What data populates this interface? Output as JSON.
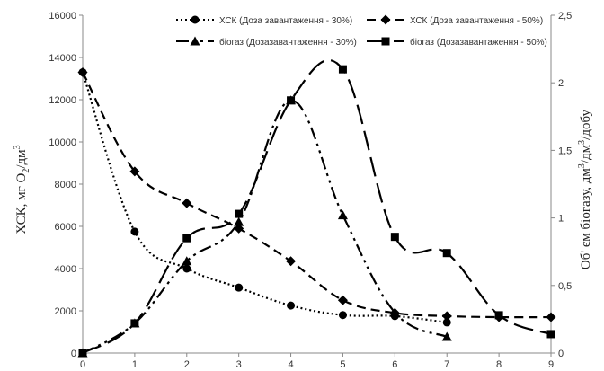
{
  "chart_data": {
    "type": "line",
    "x": [
      0,
      1,
      2,
      3,
      4,
      5,
      6,
      7,
      8,
      9
    ],
    "xlim": [
      0,
      9
    ],
    "y_left": {
      "label": "ХСК, мг О₂/дм³",
      "ylim": [
        0,
        16000
      ],
      "ticks": [
        0,
        2000,
        4000,
        6000,
        8000,
        10000,
        12000,
        14000,
        16000
      ]
    },
    "y_right": {
      "label": "Об' єм біогазу, дм³/дм³/добу",
      "ylim": [
        0,
        2.5
      ],
      "ticks": [
        "0",
        "0,5",
        "1",
        "1,5",
        "2",
        "2,5"
      ]
    },
    "series": [
      {
        "name": "ХСК (Доза завантаження - 30%)",
        "axis": "left",
        "marker": "circle",
        "dash": "dotted",
        "x": [
          0,
          1,
          2,
          3,
          4,
          5,
          6,
          7
        ],
        "values": [
          13300,
          5750,
          4000,
          3100,
          2250,
          1800,
          1750,
          1450
        ]
      },
      {
        "name": "ХСК (Доза завантаження - 50%)",
        "axis": "left",
        "marker": "diamond",
        "dash": "dashed",
        "x": [
          0,
          1,
          2,
          3,
          4,
          5,
          6,
          7,
          8,
          9
        ],
        "values": [
          13300,
          8600,
          7100,
          5900,
          4350,
          2500,
          1900,
          1750,
          1700,
          1700
        ]
      },
      {
        "name": "біогаз (Дозазавантаження - 30%)",
        "axis": "right",
        "marker": "triangle",
        "dash": "dash-dot",
        "x": [
          0,
          1,
          2,
          3,
          4,
          5,
          6,
          7
        ],
        "values": [
          0,
          0.22,
          0.68,
          0.97,
          1.87,
          1.02,
          0.3,
          0.12
        ]
      },
      {
        "name": "біогаз (Дозазавантаження - 50%)",
        "axis": "right",
        "marker": "square",
        "dash": "long-dash",
        "x": [
          0,
          1,
          2,
          3,
          4,
          5,
          6,
          7,
          8,
          9
        ],
        "values": [
          0,
          0.22,
          0.85,
          1.03,
          1.87,
          2.1,
          0.86,
          0.74,
          0.28,
          0.14
        ]
      }
    ],
    "legend": "top, two columns",
    "grid": false,
    "colors": {
      "line": "#000000",
      "axis": "#888888",
      "text": "#333333"
    }
  }
}
